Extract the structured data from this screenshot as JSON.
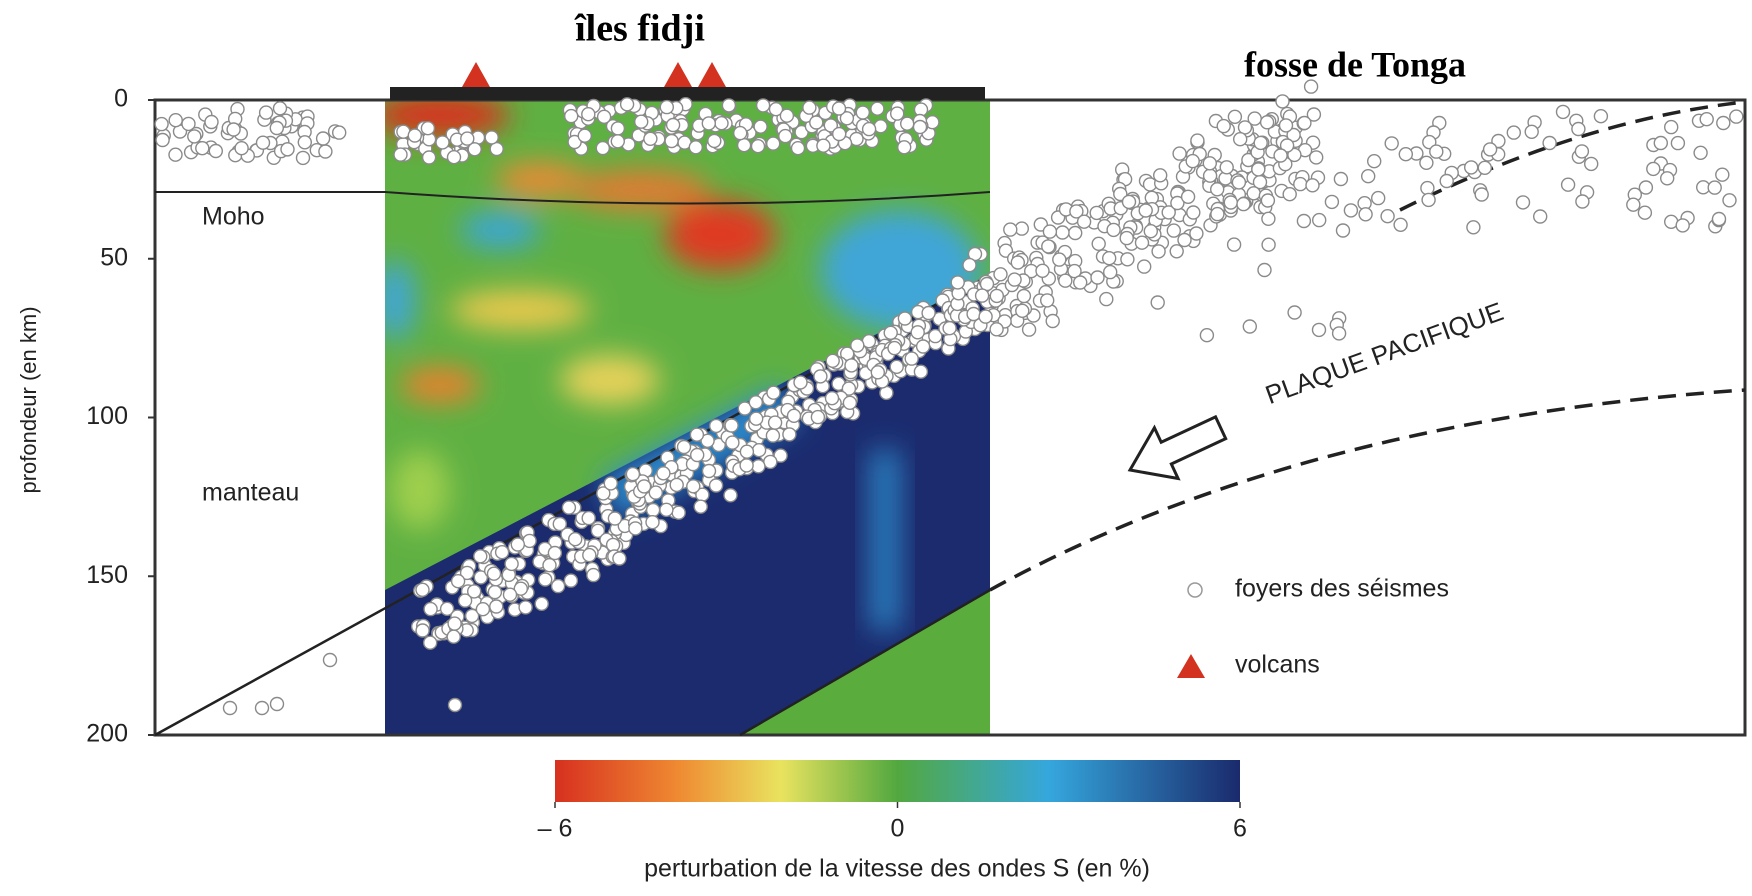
{
  "header": {
    "left_title": "îles fidji",
    "right_title": "fosse de Tonga"
  },
  "depth_axis": {
    "label": "profondeur (en km)",
    "lim": [
      0,
      200
    ],
    "ticks": [
      0,
      50,
      100,
      150,
      200
    ]
  },
  "annotations": {
    "moho": "Moho",
    "mantle": "manteau",
    "plate": "PLAQUE PACIFIQUE"
  },
  "legend": {
    "earthquakes": "foyers des séismes",
    "volcanoes": "volcans"
  },
  "colorbar": {
    "label": "perturbation de la vitesse des ondes S (en %)",
    "lim": [
      -6,
      6
    ],
    "ticks": [
      {
        "value": -6,
        "label": "– 6"
      },
      0,
      6
    ]
  }
}
